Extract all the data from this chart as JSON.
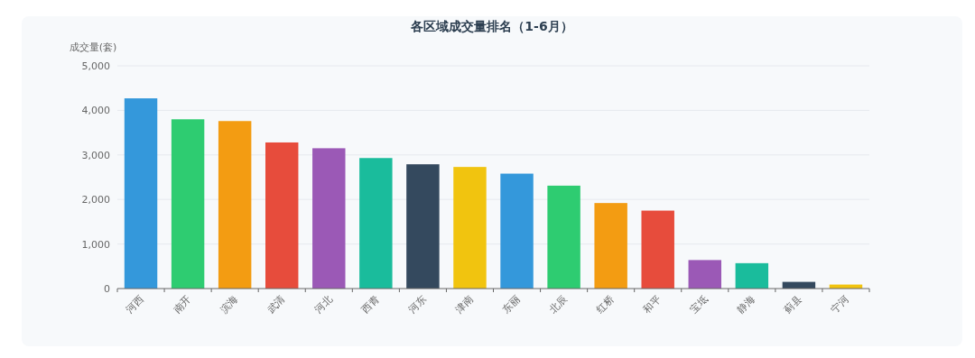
{
  "chart_data": {
    "type": "bar",
    "title": "各区域成交量排名（1-6月）",
    "ylabel": "成交量(套)",
    "categories": [
      "河西",
      "南开",
      "滨海",
      "武清",
      "河北",
      "西青",
      "河东",
      "津南",
      "东丽",
      "北辰",
      "红桥",
      "和平",
      "宝坻",
      "静海",
      "蓟县",
      "宁河"
    ],
    "values": [
      4270,
      3800,
      3760,
      3280,
      3150,
      2930,
      2790,
      2730,
      2580,
      2310,
      1920,
      1750,
      640,
      570,
      150,
      90
    ],
    "colors": [
      "#3498db",
      "#2ecc71",
      "#f39c12",
      "#e74c3c",
      "#9b59b6",
      "#1abc9c",
      "#34495e",
      "#f1c40f",
      "#3498db",
      "#2ecc71",
      "#f39c12",
      "#e74c3c",
      "#9b59b6",
      "#1abc9c",
      "#34495e",
      "#f1c40f"
    ],
    "ylim": [
      0,
      5000
    ],
    "yticks": [
      {
        "value": 0,
        "label": "0"
      },
      {
        "value": 1000,
        "label": "1,000"
      },
      {
        "value": 2000,
        "label": "2,000"
      },
      {
        "value": 3000,
        "label": "3,000"
      },
      {
        "value": 4000,
        "label": "4,000"
      },
      {
        "value": 5000,
        "label": "5,000"
      }
    ],
    "grid": "y"
  }
}
